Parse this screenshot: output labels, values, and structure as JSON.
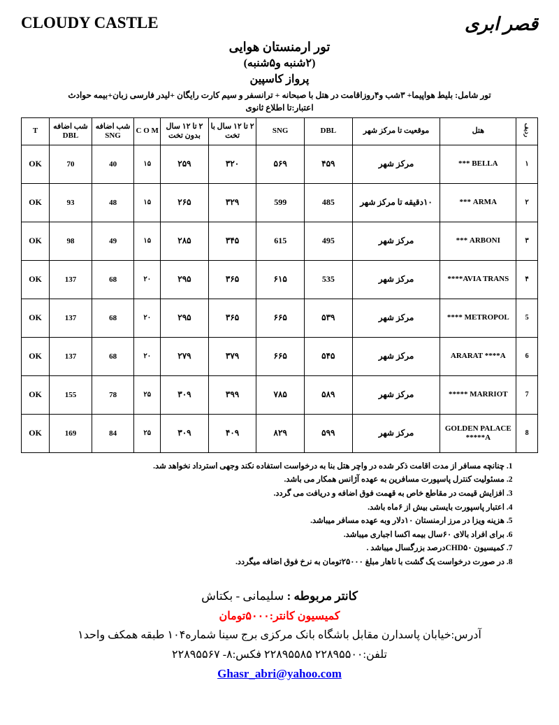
{
  "header": {
    "brand_en": "CLOUDY CASTLE",
    "brand_fa": "قصر ابری",
    "title1": "تور ارمنستان هوایی",
    "title2": "(۲شنبه و۵شنبه)",
    "title3": "پرواز کاسپین",
    "includes": "تور شامل: بلیط هواپیما+ ۳شب و۴روزاقامت در هتل با صبحانه + ترانسفر و سیم کارت رایگان +لیدر فارسی زبان+بیمه حوادث",
    "validity": "اعتبار:تا اطلاع ثانوی"
  },
  "table": {
    "headers": {
      "idx": "ردیف",
      "hotel": "هتل",
      "location": "موقعیت تا مرکز شهر",
      "dbl": "DBL",
      "sng": "SNG",
      "chd_bed": "۲ تا ۱۲ سال با تخت",
      "chd_nobed": "۲ تا ۱۲ سال بدون تخت",
      "com": "C O M",
      "extra_sng": "شب اضافه SNG",
      "extra_dbl": "شب اضافه DBL",
      "t": "T"
    },
    "rows": [
      {
        "idx": "۱",
        "hotel": "BELLA ***",
        "loc": "مرکز شهر",
        "dbl": "۴۵۹",
        "sng": "۵۶۹",
        "chd_bed": "۳۲۰",
        "chd_nobed": "۲۵۹",
        "com": "۱۵",
        "ext_sng": "40",
        "ext_dbl": "70",
        "t": "OK"
      },
      {
        "idx": "۲",
        "hotel": "ARMA ***",
        "loc": "۱۰دقیقه تا مرکز شهر",
        "dbl": "485",
        "sng": "599",
        "chd_bed": "۳۲۹",
        "chd_nobed": "۲۶۵",
        "com": "۱۵",
        "ext_sng": "48",
        "ext_dbl": "93",
        "t": "OK"
      },
      {
        "idx": "۳",
        "hotel": "ARBONI ***",
        "loc": "مرکز شهر",
        "dbl": "495",
        "sng": "615",
        "chd_bed": "۳۴۵",
        "chd_nobed": "۲۸۵",
        "com": "۱۵",
        "ext_sng": "49",
        "ext_dbl": "98",
        "t": "OK"
      },
      {
        "idx": "۴",
        "hotel": "AVIA TRANS****",
        "loc": "مرکز شهر",
        "dbl": "535",
        "sng": "۶۱۵",
        "chd_bed": "۳۶۵",
        "chd_nobed": "۲۹۵",
        "com": "۲۰",
        "ext_sng": "68",
        "ext_dbl": "137",
        "t": "OK"
      },
      {
        "idx": "5",
        "hotel": "METROPOL ****",
        "loc": "مرکز شهر",
        "dbl": "۵۳۹",
        "sng": "۶۶۵",
        "chd_bed": "۳۶۵",
        "chd_nobed": "۲۹۵",
        "com": "۲۰",
        "ext_sng": "68",
        "ext_dbl": "137",
        "t": "OK"
      },
      {
        "idx": "6",
        "hotel": "ARARAT ****A",
        "loc": "مرکز شهر",
        "dbl": "۵۴۵",
        "sng": "۶۶۵",
        "chd_bed": "۳۷۹",
        "chd_nobed": "۲۷۹",
        "com": "۲۰",
        "ext_sng": "68",
        "ext_dbl": "137",
        "t": "OK"
      },
      {
        "idx": "7",
        "hotel": "MARRIOT *****",
        "loc": "مرکز شهر",
        "dbl": "۵۸۹",
        "sng": "۷۸۵",
        "chd_bed": "۳۹۹",
        "chd_nobed": "۳۰۹",
        "com": "۲۵",
        "ext_sng": "78",
        "ext_dbl": "155",
        "t": "OK"
      },
      {
        "idx": "8",
        "hotel": "GOLDEN PALACE *****A",
        "loc": "مرکز شهر",
        "dbl": "۵۹۹",
        "sng": "۸۲۹",
        "chd_bed": "۴۰۹",
        "chd_nobed": "۳۰۹",
        "com": "۲۵",
        "ext_sng": "84",
        "ext_dbl": "169",
        "t": "OK"
      }
    ]
  },
  "notes": [
    "چنانچه مسافر از مدت اقامت ذکر شده در واچر هتل بنا به درخواست استفاده نکند وجهی استرداد نخواهد شد.",
    "مسئولیت کنترل پاسپورت مسافرین به عهده آژانس همکار می باشد.",
    "افزایش قیمت در مقاطع خاص به قهمت فوق اضافه و دریافت می گردد.",
    "اعتبار پاسپورت بایستی بیش از ۶ماه باشد.",
    "هزینه ویزا در مرز ارمنستان ۱۰دلار وبه عهده مسافر میباشد.",
    "برای افراد بالای ۶۰سال بیمه اکسا اجباری میباشد.",
    "کمیسیون CHD۵۰درصد بزرگسال میباشد .",
    "در صورت درخواست یک گشت با ناهار مبلغ ۲۵۰۰۰تومان به نرخ فوق اضافه میگردد."
  ],
  "footer": {
    "counter_label": "کانتر مربوطه :",
    "counter_names": "سلیمانی - بکتاش",
    "commission": "کمیسیون کانتر:۵۰۰۰تومان",
    "address": "آدرس:خیابان پاسدارن مقابل باشگاه بانک مرکزی برج سینا شماره۱۰۴ طبقه همکف واحد۱",
    "phones": "تلفن:۲۲۸۹۵۵۰۰    ۲۲۸۹۵۵۸۵    فکس:۸- ۲۲۸۹۵۵۶۷",
    "email": "Ghasr_abri@yahoo.com"
  }
}
